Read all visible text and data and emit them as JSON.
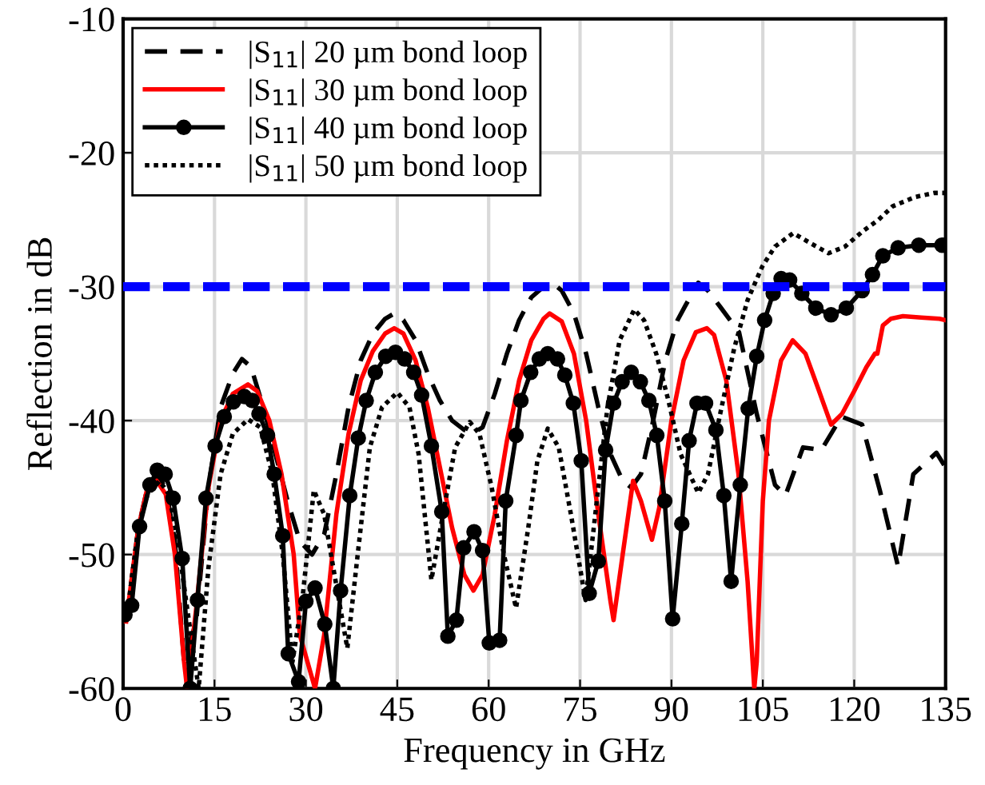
{
  "chart_data": {
    "type": "line",
    "xlabel": "Frequency in GHz",
    "ylabel": "Reflection in dB",
    "xlim": [
      0,
      135
    ],
    "ylim": [
      -60,
      -10
    ],
    "xticks": [
      0,
      15,
      30,
      45,
      60,
      75,
      90,
      105,
      120,
      135
    ],
    "yticks": [
      -60,
      -50,
      -40,
      -30,
      -20,
      -10
    ],
    "grid": true,
    "legend": "top left",
    "ref_lines": [
      {
        "axis": "y",
        "value": -30,
        "color": "#0000ff",
        "line_style": "dashed"
      }
    ],
    "series": [
      {
        "name": "|S$_{11}$| 20 µm bond loop",
        "color": "#000000",
        "line_style": "dashed",
        "marker": "none",
        "x": [
          0.5,
          2.5,
          4,
          5.5,
          7,
          8.5,
          10,
          12,
          14,
          16,
          18,
          19.5,
          21,
          23,
          25,
          27,
          29,
          31,
          33,
          35,
          37,
          39,
          41,
          43,
          44.5,
          46,
          48,
          50,
          52,
          54,
          56,
          57.5,
          59,
          61,
          63,
          65,
          67,
          69,
          70.4,
          72,
          74,
          76,
          78,
          80,
          82,
          83.4,
          85,
          87,
          89,
          91,
          92.3,
          94.4,
          96,
          98,
          101.1,
          104,
          107,
          108.7,
          111.6,
          114.6,
          117.9,
          121.3,
          124.2,
          127.2,
          129.7,
          133.5,
          135
        ],
        "values": [
          -55,
          -48,
          -45,
          -44,
          -45,
          -49,
          -58,
          -55,
          -45,
          -39,
          -36.5,
          -35.4,
          -36,
          -39,
          -42.5,
          -46,
          -49,
          -50,
          -48.5,
          -44,
          -39,
          -35.5,
          -33.5,
          -32.4,
          -32,
          -32.5,
          -34,
          -36.5,
          -38.5,
          -40,
          -40.7,
          -40.9,
          -40.5,
          -38,
          -35,
          -32.5,
          -30.8,
          -30,
          -29.7,
          -30.3,
          -32,
          -35,
          -39,
          -42.5,
          -44.5,
          -45,
          -44,
          -40,
          -35.5,
          -32.5,
          -31.4,
          -29.7,
          -30.3,
          -31.5,
          -33.4,
          -39.5,
          -44.8,
          -45.6,
          -42,
          -42.2,
          -39.7,
          -40.3,
          -45.2,
          -50.9,
          -44,
          -42.4,
          -43.5
        ]
      },
      {
        "name": "|S$_{11}$| 30 µm bond loop",
        "color": "#ff0000",
        "line_style": "solid",
        "marker": "none",
        "x": [
          0.5,
          2.5,
          4,
          5.5,
          7,
          8.5,
          10,
          10.5,
          12,
          14,
          16,
          18,
          20.5,
          22,
          24,
          26,
          28,
          29,
          31.5,
          33,
          35,
          37,
          39,
          41,
          43,
          44.5,
          46,
          48,
          50,
          52,
          54,
          56,
          57.5,
          59,
          61,
          63,
          65,
          67,
          69,
          70,
          72,
          74,
          76,
          78,
          80,
          80.5,
          82,
          83.7,
          85,
          86.8,
          88,
          90,
          92,
          94,
          95.8,
          97,
          99,
          101,
          102.5,
          103.6,
          104,
          105,
          106,
          108,
          109.9,
          112,
          114,
          116.2,
          118,
          120,
          122,
          123.4,
          123.8,
          124.7,
          126,
          128,
          131,
          134,
          135
        ],
        "values": [
          -55,
          -48,
          -45,
          -44.5,
          -45.5,
          -50,
          -58,
          -60,
          -54,
          -45,
          -40,
          -38,
          -37.3,
          -37.8,
          -40,
          -44,
          -50,
          -56,
          -60,
          -56,
          -47,
          -41,
          -37,
          -34.8,
          -33.5,
          -33.1,
          -33.5,
          -35.5,
          -39,
          -43.5,
          -48,
          -51.5,
          -52.7,
          -51.5,
          -47,
          -41.5,
          -37,
          -34,
          -32.4,
          -32,
          -32.6,
          -35,
          -40,
          -47,
          -53.5,
          -54.9,
          -50,
          -44.5,
          -46,
          -48.9,
          -46.5,
          -40,
          -35.5,
          -33.4,
          -33.1,
          -33.6,
          -37,
          -44,
          -52,
          -60,
          -58,
          -46,
          -40,
          -35.5,
          -34,
          -35,
          -37.5,
          -40.3,
          -39.5,
          -37.8,
          -36,
          -35,
          -35,
          -32.9,
          -32.4,
          -32.2,
          -32.3,
          -32.4,
          -32.5
        ]
      },
      {
        "name": "|S$_{11}$| 40 µm bond loop",
        "color": "#000000",
        "line_style": "solid",
        "marker": "circle",
        "x": [
          0.3,
          1.4,
          2.7,
          4.4,
          5.6,
          6.9,
          8.2,
          9.7,
          11,
          12.2,
          13.6,
          15.1,
          16.6,
          18.1,
          19.9,
          21.2,
          22.3,
          23.7,
          24.8,
          26.2,
          27.1,
          28.8,
          30,
          31.5,
          33.1,
          34.5,
          35.7,
          37.2,
          38.6,
          39.9,
          41.4,
          43.1,
          44.7,
          46.2,
          47.7,
          49,
          50.6,
          52.3,
          53.3,
          54.7,
          55.9,
          57.6,
          59,
          60.1,
          61.8,
          62.8,
          64.5,
          65.3,
          66.9,
          68.3,
          69.7,
          71.3,
          72.5,
          73.9,
          75.2,
          76.5,
          78,
          79.2,
          80.5,
          81.9,
          83.4,
          84.9,
          86.3,
          87.6,
          88.9,
          90.2,
          91.7,
          92.9,
          94.2,
          95.6,
          97.3,
          98.6,
          99.8,
          101.3,
          102.6,
          104,
          105.3,
          106.7,
          108,
          109.4,
          111.4,
          113.7,
          116.2,
          118.7,
          121.3,
          123,
          124.7,
          127.2,
          130.6,
          134.4,
          135
        ],
        "values": [
          -54.5,
          -53.8,
          -47.9,
          -44.8,
          -43.7,
          -44,
          -45.8,
          -50.3,
          -60,
          -53.4,
          -45.8,
          -41.9,
          -39.7,
          -38.6,
          -38.2,
          -38.5,
          -39.5,
          -41.1,
          -44,
          -48.6,
          -57.4,
          -59.5,
          -53.5,
          -52.5,
          -55.2,
          -60,
          -52.7,
          -45.6,
          -41.3,
          -38.5,
          -36.4,
          -35.2,
          -34.9,
          -35.4,
          -36.4,
          -38.1,
          -41.9,
          -46.8,
          -56.1,
          -54.9,
          -49.5,
          -48.3,
          -49.7,
          -56.6,
          -56.4,
          -46,
          -41.1,
          -38.5,
          -36.4,
          -35.4,
          -35,
          -35.4,
          -36.6,
          -38.7,
          -43,
          -52.9,
          -50.5,
          -42.2,
          -38.7,
          -37.1,
          -36.4,
          -37.1,
          -38.5,
          -41.1,
          -46,
          -54.8,
          -47.7,
          -41.5,
          -38.7,
          -38.7,
          -40.7,
          -45.6,
          -52,
          -44.8,
          -39.1,
          -35.2,
          -32.5,
          -30.5,
          -29.4,
          -29.5,
          -30.5,
          -31.6,
          -32.1,
          -31.6,
          -30.3,
          -29.1,
          -27.7,
          -27.1,
          -26.9,
          -26.9,
          -26.9
        ]
      },
      {
        "name": "|S$_{11}$| 50 µm bond loop",
        "color": "#000000",
        "line_style": "dotted",
        "marker": "none",
        "x": [
          0.5,
          2.5,
          4,
          6,
          7.5,
          9,
          10.5,
          12.4,
          14,
          16,
          18,
          20.5,
          22.5,
          24.5,
          26.2,
          27.8,
          29.5,
          31.3,
          33,
          34.5,
          36.8,
          38.5,
          40.5,
          42.5,
          45,
          47,
          48.5,
          50.6,
          52.5,
          54.5,
          56.9,
          58.5,
          60.5,
          62.5,
          64.5,
          66.5,
          68,
          69.7,
          71.5,
          73.5,
          75.9,
          77.5,
          79.5,
          81.5,
          83.9,
          85.5,
          87.5,
          89.5,
          91.5,
          94.4,
          96,
          98,
          100.3,
          102.5,
          104.9,
          107,
          110,
          113,
          115.8,
          118.5,
          121.3,
          124,
          126.3,
          130,
          133.1,
          135
        ],
        "values": [
          -55,
          -48,
          -45.5,
          -44.5,
          -45.5,
          -49,
          -54,
          -60,
          -51,
          -44,
          -41,
          -39.9,
          -40.5,
          -44,
          -50,
          -58,
          -53,
          -45.2,
          -47,
          -51,
          -57,
          -50,
          -42,
          -39,
          -37.9,
          -39,
          -42.5,
          -51.9,
          -47,
          -42,
          -40.1,
          -41,
          -45,
          -50,
          -54,
          -48,
          -43,
          -40.6,
          -42,
          -47,
          -53.4,
          -47,
          -39,
          -34,
          -31.7,
          -32.5,
          -35,
          -38.5,
          -42.5,
          -45.4,
          -44,
          -39.5,
          -34.6,
          -31,
          -28.5,
          -27,
          -26,
          -26.8,
          -27.5,
          -27,
          -25.9,
          -25,
          -24,
          -23.3,
          -23,
          -23
        ]
      }
    ]
  }
}
